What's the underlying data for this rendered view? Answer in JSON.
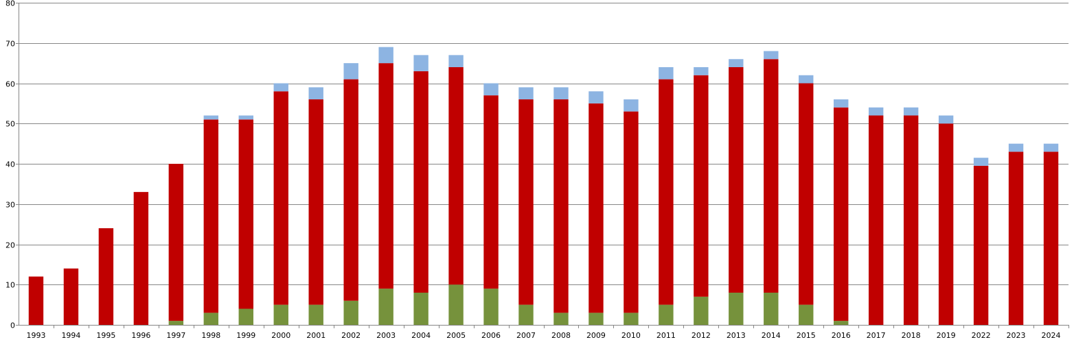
{
  "chart_data": {
    "type": "bar",
    "stacked": true,
    "title": "",
    "xlabel": "",
    "ylabel": "",
    "ylim": [
      0,
      80
    ],
    "yticks": [
      0,
      10,
      20,
      30,
      40,
      50,
      60,
      70,
      80
    ],
    "grid": true,
    "legend": "none",
    "categories": [
      "1993",
      "1994",
      "1995",
      "1996",
      "1997",
      "1998",
      "1999",
      "2000",
      "2001",
      "2002",
      "2003",
      "2004",
      "2005",
      "2006",
      "2007",
      "2008",
      "2009",
      "2010",
      "2011",
      "2012",
      "2013",
      "2014",
      "2015",
      "2016",
      "2017",
      "2018",
      "2019",
      "2022",
      "2023",
      "2024"
    ],
    "series": [
      {
        "color": "#76923c",
        "values": [
          0,
          0,
          0,
          0,
          1,
          3,
          4,
          5,
          5,
          6,
          9,
          8,
          10,
          9,
          5,
          3,
          3,
          3,
          5,
          7,
          8,
          8,
          5,
          1,
          0,
          0,
          0,
          0,
          0,
          0
        ]
      },
      {
        "color": "#c00000",
        "values": [
          12,
          14,
          24,
          33,
          39,
          48,
          47,
          53,
          51,
          55,
          56,
          55,
          54,
          48,
          51,
          53,
          52,
          50,
          56,
          55,
          56,
          58,
          55,
          53,
          52,
          52,
          50,
          39.5,
          43,
          43
        ]
      },
      {
        "color": "#8db4e2",
        "values": [
          0,
          0,
          0,
          0,
          0,
          1,
          1,
          2,
          3,
          4,
          4,
          4,
          3,
          3,
          3,
          3,
          3,
          3,
          3,
          2,
          2,
          2,
          2,
          2,
          2,
          2,
          2,
          2,
          2,
          2
        ]
      }
    ]
  }
}
